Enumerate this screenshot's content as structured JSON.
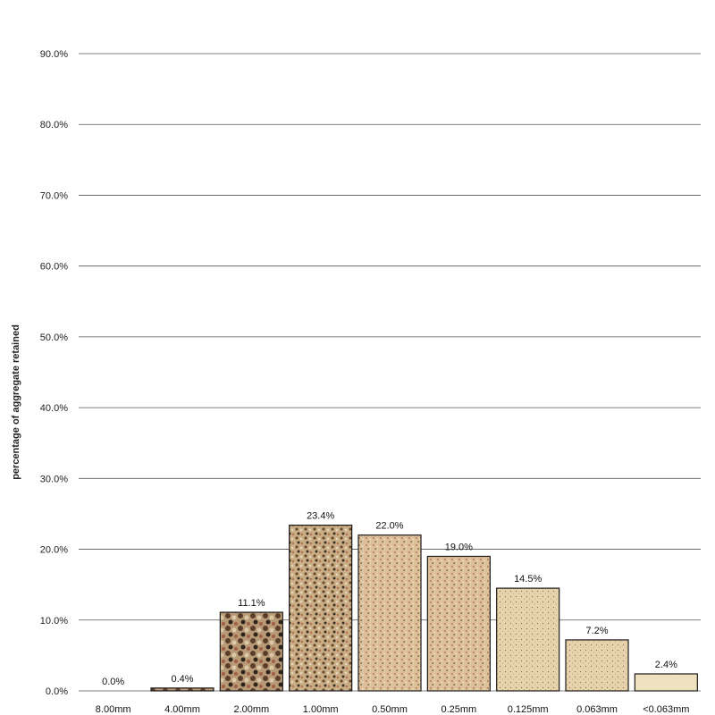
{
  "chart_data": {
    "type": "bar",
    "title": "",
    "xlabel": "",
    "ylabel": "percentage of aggregate retained",
    "ylim": [
      0,
      100
    ],
    "grid": true,
    "y_ticks": [
      "0.0%",
      "10.0%",
      "20.0%",
      "30.0%",
      "40.0%",
      "50.0%",
      "60.0%",
      "70.0%",
      "80.0%",
      "90.0%"
    ],
    "categories": [
      "8.00mm",
      "4.00mm",
      "2.00mm",
      "1.00mm",
      "0.50mm",
      "0.25mm",
      "0.125mm",
      "0.063mm",
      "<0.063mm"
    ],
    "values": [
      0.0,
      0.4,
      11.1,
      23.4,
      22.0,
      19.0,
      14.5,
      7.2,
      2.4
    ],
    "data_labels": [
      "0.0%",
      "0.4%",
      "11.1%",
      "23.4%",
      "22.0%",
      "19.0%",
      "14.5%",
      "7.2%",
      "2.4%"
    ],
    "bar_textures": [
      "none",
      "coarse-gravel",
      "gravel",
      "coarse-sand",
      "medium-sand",
      "fine-sand",
      "finer-sand",
      "very-fine-sand",
      "silt"
    ],
    "colors": {
      "grid": "#555555",
      "coarse": "#8a6a4a",
      "medium": "#c9a57a",
      "fine": "#e8cfa0",
      "silt": "#efe2bf"
    }
  }
}
